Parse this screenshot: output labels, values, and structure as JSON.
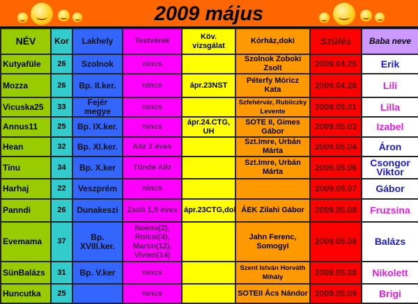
{
  "title": "2009 május",
  "headers": [
    "NÉV",
    "Kor",
    "Lakhely",
    "Testvérek",
    "Köv. vizsgálat",
    "Kórház,doki",
    "Szülés",
    "Baba neve"
  ],
  "colors": {
    "boy": "#1a1acc",
    "girl": "#e020e0"
  },
  "rows": [
    {
      "nev": "Kutyafüle",
      "kor": "26",
      "lakhely": "Szolnok",
      "testverek": "nincs",
      "vizsgalat": "",
      "korhaz": "Szolnok Zoboki Zsolt",
      "szules": "2009.04.25",
      "baba": "Erik",
      "baba_color": "#1a1acc"
    },
    {
      "nev": "Mozza",
      "kor": "26",
      "lakhely": "Bp. II.ker.",
      "testverek": "nincs",
      "vizsgalat": "ápr.23NST",
      "korhaz": "Péterfy Móricz Kata",
      "szules": "2009.04.28",
      "baba": "Lili",
      "baba_color": "#e020e0"
    },
    {
      "nev": "Vicuska25",
      "kor": "33",
      "lakhely": "Fejér megye",
      "testverek": "nincs",
      "vizsgalat": "",
      "korhaz": "Szfehérvár, Rubliczky Levente",
      "szules": "2009.05.01",
      "baba": "Lilla",
      "baba_color": "#e020e0"
    },
    {
      "nev": "Annus11",
      "kor": "25",
      "lakhely": "Bp. IX.ker.",
      "testverek": "nincs",
      "vizsgalat": "ápr.24.CTG, UH",
      "korhaz": "SOTE II, Gimes Gábor",
      "szules": "2009.05.03",
      "baba": "Izabel",
      "baba_color": "#e020e0"
    },
    {
      "nev": "Hean",
      "kor": "32",
      "lakhely": "Bp. XI.ker.",
      "testverek": "Alíz 2 éves",
      "vizsgalat": "",
      "korhaz": "Szt.Imre, Urbán Márta",
      "szules": "2009.05.04",
      "baba": "Áron",
      "baba_color": "#1a1acc"
    },
    {
      "nev": "Tinu",
      "kor": "34",
      "lakhely": "Bp. X.ker",
      "testverek": "Tünde Alíz",
      "vizsgalat": "",
      "korhaz": "Szt.Imre, Urbán Márta",
      "szules": "2009.05.06",
      "baba": "Csongor Viktor",
      "baba_color": "#1a1acc"
    },
    {
      "nev": "Harhaj",
      "kor": "22",
      "lakhely": "Veszprém",
      "testverek": "nincs",
      "vizsgalat": "",
      "korhaz": "",
      "szules": "2009.05.07",
      "baba": "Gábor",
      "baba_color": "#1a1acc"
    },
    {
      "nev": "Panndi",
      "kor": "26",
      "lakhely": "Dunakeszi",
      "testverek": "Zsófi 1,5 éves",
      "vizsgalat": "ápr.23CTG,doki",
      "korhaz": "ÁEK Zilahi Gábor",
      "szules": "2009.05.08",
      "baba": "Fruzsina",
      "baba_color": "#e020e0"
    },
    {
      "nev": "Evemama",
      "kor": "37",
      "lakhely": "Bp. XVIII.ker.",
      "testverek": "Noémi(2), Rolcsi(4), Martin(12), Vivien(14)",
      "vizsgalat": "",
      "korhaz": "Jahn Ferenc, Somogyi",
      "szules": "2009.05.08",
      "baba": "Balázs",
      "baba_color": "#1a1acc"
    },
    {
      "nev": "SünBalázs",
      "kor": "31",
      "lakhely": "Bp. V.ker",
      "testverek": "nincs",
      "vizsgalat": "",
      "korhaz": "Szent István Horváth Mihály",
      "szules": "2009.05.08",
      "baba": "Nikolett",
      "baba_color": "#e020e0"
    },
    {
      "nev": "Huncutka",
      "kor": "25",
      "lakhely": "",
      "testverek": "nincs",
      "vizsgalat": "",
      "korhaz": "SOTEII Ács Nándor",
      "szules": "2009.05.09",
      "baba": "Brigi",
      "baba_color": "#e020e0"
    }
  ]
}
